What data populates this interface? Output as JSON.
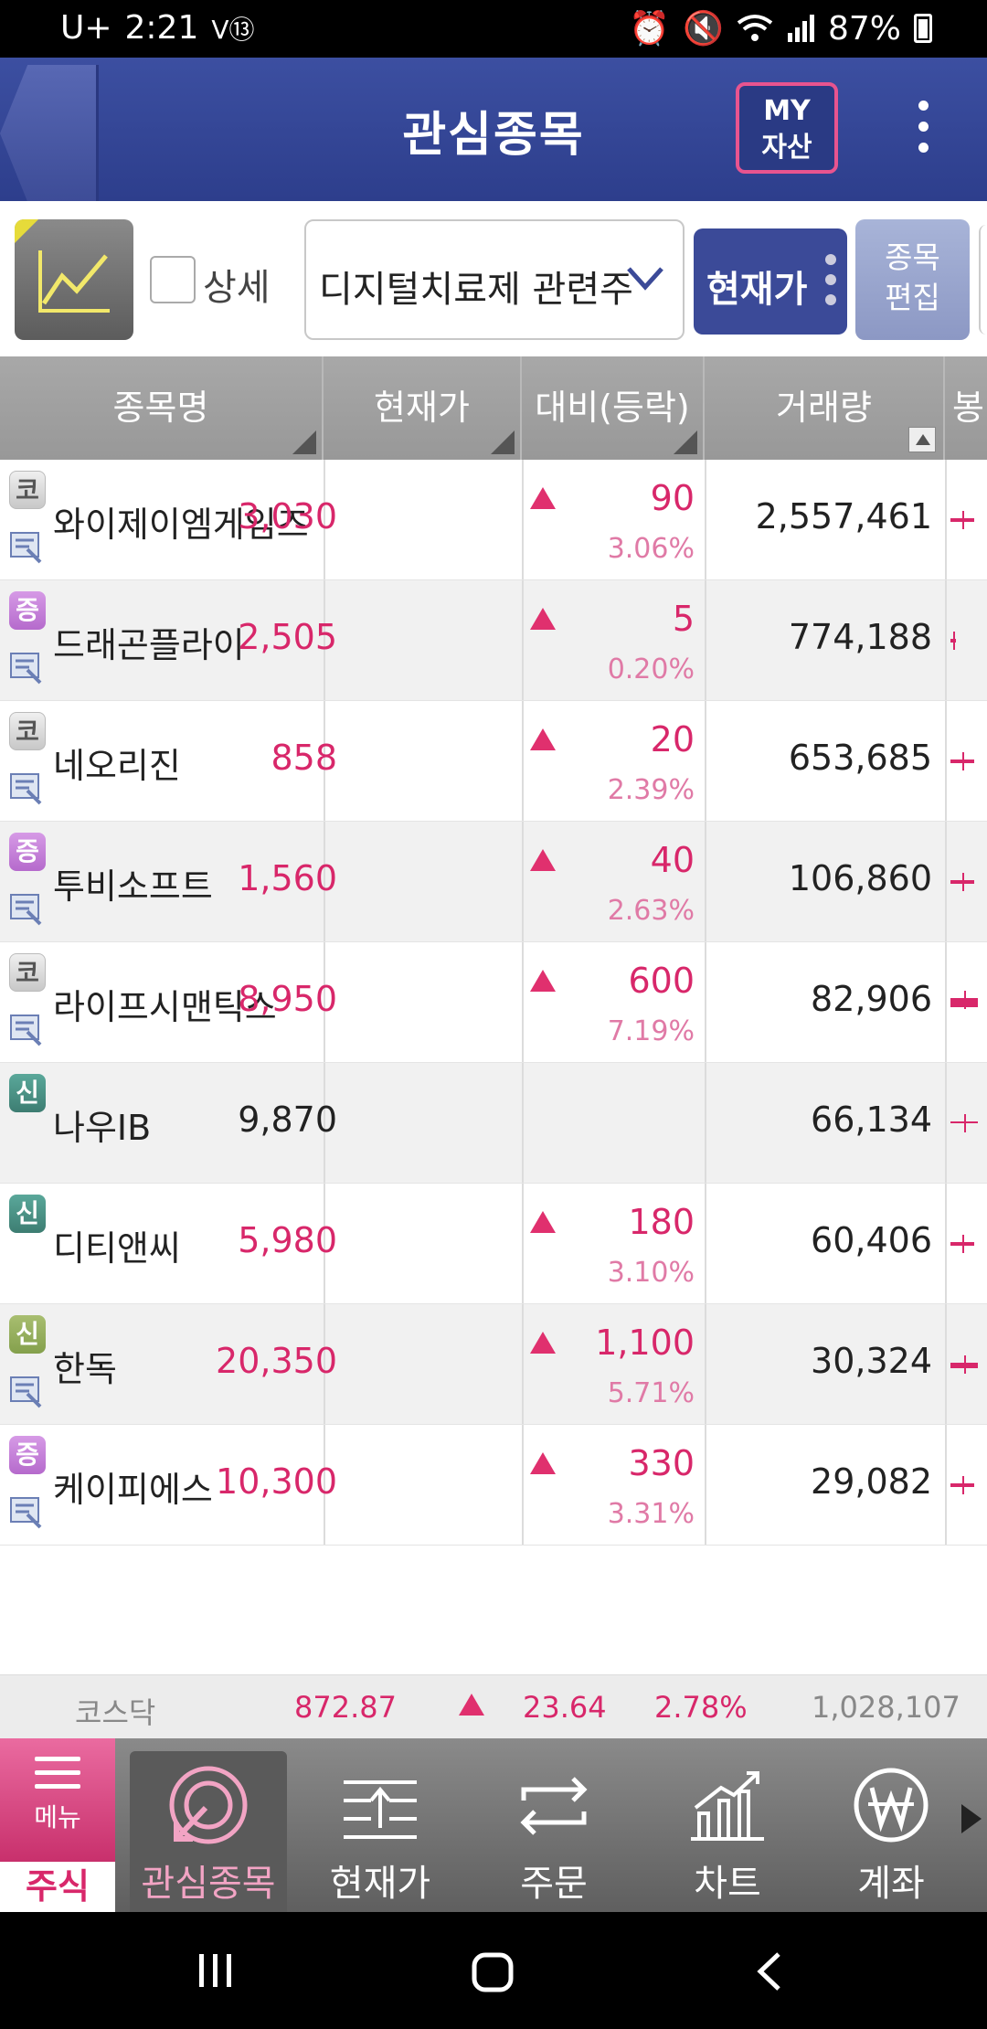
{
  "status_bar": {
    "carrier": "U+",
    "time": "2:21",
    "battery": "87%"
  },
  "header": {
    "title": "관심종목",
    "my_button_line1": "MY",
    "my_button_line2": "자산"
  },
  "toolbar": {
    "detail_label": "상세",
    "group_name": "디지털치료제 관련주",
    "price_button": "현재가",
    "edit_line1": "종목",
    "edit_line2": "편집"
  },
  "table": {
    "headers": [
      "종목명",
      "현재가",
      "대비(등락)",
      "거래량",
      "봉"
    ],
    "rows": [
      {
        "badge": "코",
        "badge_type": "kosdaq",
        "news": true,
        "name": "와이제이엠게임즈",
        "price": "3,030",
        "change": "90",
        "rate": "3.06%",
        "up": true,
        "volume": "2,557,461"
      },
      {
        "badge": "증",
        "badge_type": "kospi",
        "news": true,
        "name": "드래곤플라이",
        "price": "2,505",
        "change": "5",
        "rate": "0.20%",
        "up": true,
        "volume": "774,188"
      },
      {
        "badge": "코",
        "badge_type": "kosdaq",
        "news": true,
        "name": "네오리진",
        "price": "858",
        "change": "20",
        "rate": "2.39%",
        "up": true,
        "volume": "653,685"
      },
      {
        "badge": "증",
        "badge_type": "kospi",
        "news": true,
        "name": "투비소프트",
        "price": "1,560",
        "change": "40",
        "rate": "2.63%",
        "up": true,
        "volume": "106,860"
      },
      {
        "badge": "코",
        "badge_type": "kosdaq",
        "news": true,
        "name": "라이프시맨틱스",
        "price": "8,950",
        "change": "600",
        "rate": "7.19%",
        "up": true,
        "volume": "82,906"
      },
      {
        "badge": "신",
        "badge_type": "credit",
        "news": false,
        "name": "나우IB",
        "price": "9,870",
        "change": "",
        "rate": "",
        "up": false,
        "volume": "66,134"
      },
      {
        "badge": "신",
        "badge_type": "credit",
        "news": false,
        "name": "디티앤씨",
        "price": "5,980",
        "change": "180",
        "rate": "3.10%",
        "up": true,
        "volume": "60,406"
      },
      {
        "badge": "신",
        "badge_type": "credit2",
        "news": true,
        "name": "한독",
        "price": "20,350",
        "change": "1,100",
        "rate": "5.71%",
        "up": true,
        "volume": "30,324"
      },
      {
        "badge": "증",
        "badge_type": "kospi",
        "news": true,
        "name": "케이피에스",
        "price": "10,300",
        "change": "330",
        "rate": "3.31%",
        "up": true,
        "volume": "29,082"
      }
    ]
  },
  "index_bar": {
    "name": "코스닥",
    "value": "872.87",
    "change": "23.64",
    "rate": "2.78%",
    "volume": "1,028,107"
  },
  "bottom_nav": {
    "menu_label": "메뉴",
    "stock_tab": "주식",
    "items": [
      {
        "label": "관심종목",
        "icon": "interest-icon",
        "active": true
      },
      {
        "label": "현재가",
        "icon": "current-price-icon",
        "active": false
      },
      {
        "label": "주문",
        "icon": "order-icon",
        "active": false
      },
      {
        "label": "차트",
        "icon": "chart-icon",
        "active": false
      },
      {
        "label": "계좌",
        "icon": "won-account-icon",
        "active": false
      }
    ]
  },
  "colors": {
    "up": "#d8276a",
    "header": "#3c4fa1",
    "accent_pink": "#e8548f"
  }
}
